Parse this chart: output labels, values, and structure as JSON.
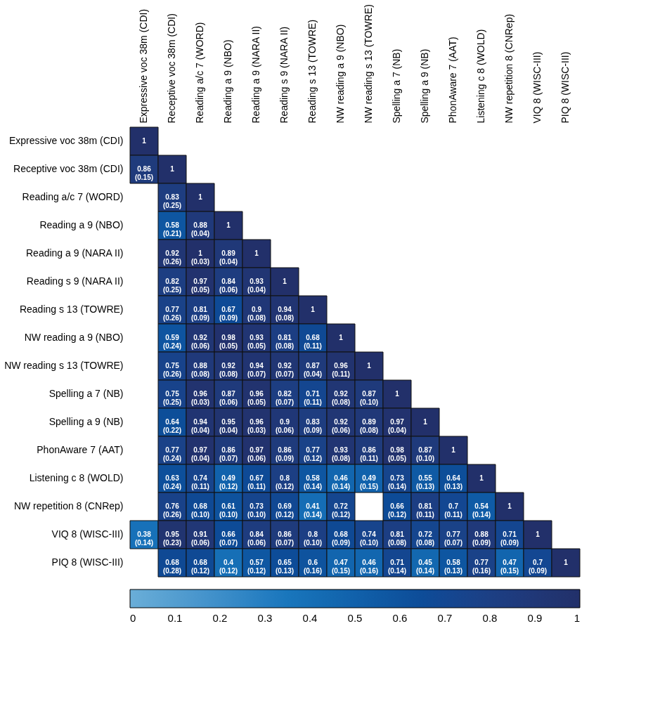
{
  "chart_data": {
    "type": "heatmap",
    "categories": [
      "Expressive voc 38m (CDI)",
      "Receptive voc 38m (CDI)",
      "Reading a/c 7 (WORD)",
      "Reading a 9 (NBO)",
      "Reading a 9 (NARA II)",
      "Reading s 9 (NARA II)",
      "Reading s 13 (TOWRE)",
      "NW reading a 9 (NBO)",
      "NW reading s 13 (TOWRE)",
      "Spelling a 7 (NB)",
      "Spelling a 9 (NB)",
      "PhonAware 7 (AAT)",
      "Listening c 8 (WOLD)",
      "NW repetition 8 (CNRep)",
      "VIQ 8 (WISC-III)",
      "PIQ 8 (WISC-III)"
    ],
    "y_categories": [
      "Expressive voc 38m (CDI)",
      "Receptive voc 38m (CDI)",
      "Reading a/c 7 (WORD)",
      "Reading a 9 (NBO)",
      "Reading a 9 (NARA II)",
      "Reading s 9 (NARA II)",
      "Reading s 13 (TOWRE)",
      "NW reading a 9 (NBO)",
      "NW reading s 13 (TOWRE)",
      "Spelling a 7 (NB)",
      "Spelling a 9 (NB)",
      "PhonAware 7 (AAT)",
      "Listening c 8 (WOLD)",
      "NW repetition 8 (CNRep)",
      "VIQ 8 (WISC-III)",
      "PIQ 8 (WISC-III)"
    ],
    "cells": [
      [
        1,
        null,
        null,
        null,
        null,
        null,
        null,
        null,
        null,
        null,
        null,
        null,
        null,
        null,
        null,
        null
      ],
      [
        0.86,
        1,
        null,
        null,
        null,
        null,
        null,
        null,
        null,
        null,
        null,
        null,
        null,
        null,
        null,
        null
      ],
      [
        null,
        0.83,
        1,
        null,
        null,
        null,
        null,
        null,
        null,
        null,
        null,
        null,
        null,
        null,
        null,
        null
      ],
      [
        null,
        0.58,
        0.88,
        1,
        null,
        null,
        null,
        null,
        null,
        null,
        null,
        null,
        null,
        null,
        null,
        null
      ],
      [
        null,
        0.92,
        1,
        0.89,
        1,
        null,
        null,
        null,
        null,
        null,
        null,
        null,
        null,
        null,
        null,
        null
      ],
      [
        null,
        0.82,
        0.97,
        0.84,
        0.93,
        1,
        null,
        null,
        null,
        null,
        null,
        null,
        null,
        null,
        null,
        null
      ],
      [
        null,
        0.77,
        0.81,
        0.67,
        0.9,
        0.94,
        1,
        null,
        null,
        null,
        null,
        null,
        null,
        null,
        null,
        null
      ],
      [
        null,
        0.59,
        0.92,
        0.98,
        0.93,
        0.81,
        0.68,
        1,
        null,
        null,
        null,
        null,
        null,
        null,
        null,
        null
      ],
      [
        null,
        0.75,
        0.88,
        0.92,
        0.94,
        0.92,
        0.87,
        0.96,
        1,
        null,
        null,
        null,
        null,
        null,
        null,
        null
      ],
      [
        null,
        0.75,
        0.96,
        0.87,
        0.96,
        0.82,
        0.71,
        0.92,
        0.87,
        1,
        null,
        null,
        null,
        null,
        null,
        null
      ],
      [
        null,
        0.64,
        0.94,
        0.95,
        0.96,
        0.9,
        0.83,
        0.92,
        0.89,
        0.97,
        1,
        null,
        null,
        null,
        null,
        null
      ],
      [
        null,
        0.77,
        0.97,
        0.86,
        0.97,
        0.86,
        0.77,
        0.93,
        0.86,
        0.98,
        0.87,
        1,
        null,
        null,
        null,
        null
      ],
      [
        null,
        0.63,
        0.74,
        0.49,
        0.67,
        0.8,
        0.58,
        0.46,
        0.49,
        0.73,
        0.55,
        0.64,
        1,
        null,
        null,
        null
      ],
      [
        null,
        0.76,
        0.68,
        0.61,
        0.73,
        0.69,
        0.41,
        0.72,
        null,
        0.66,
        0.81,
        0.7,
        0.54,
        1,
        null,
        null
      ],
      [
        0.38,
        0.95,
        0.91,
        0.66,
        0.84,
        0.86,
        0.8,
        0.68,
        0.74,
        0.81,
        0.72,
        0.77,
        0.88,
        0.71,
        1,
        null
      ],
      [
        null,
        0.68,
        0.68,
        0.4,
        0.57,
        0.65,
        0.6,
        0.47,
        0.46,
        0.71,
        0.45,
        0.58,
        0.77,
        0.47,
        0.7,
        1
      ]
    ],
    "cell_labels": [
      [
        "1",
        null,
        null,
        null,
        null,
        null,
        null,
        null,
        null,
        null,
        null,
        null,
        null,
        null,
        null,
        null
      ],
      [
        "0.86\n(0.15)",
        "1",
        null,
        null,
        null,
        null,
        null,
        null,
        null,
        null,
        null,
        null,
        null,
        null,
        null,
        null
      ],
      [
        null,
        "0.83\n(0.25)",
        "1",
        null,
        null,
        null,
        null,
        null,
        null,
        null,
        null,
        null,
        null,
        null,
        null,
        null
      ],
      [
        null,
        "0.58\n(0.21)",
        "0.88\n(0.04)",
        "1",
        null,
        null,
        null,
        null,
        null,
        null,
        null,
        null,
        null,
        null,
        null,
        null
      ],
      [
        null,
        "0.92\n(0.26)",
        "1\n(0.03)",
        "0.89\n(0.04)",
        "1",
        null,
        null,
        null,
        null,
        null,
        null,
        null,
        null,
        null,
        null,
        null
      ],
      [
        null,
        "0.82\n(0.25)",
        "0.97\n(0.05)",
        "0.84\n(0.06)",
        "0.93\n(0.04)",
        "1",
        null,
        null,
        null,
        null,
        null,
        null,
        null,
        null,
        null,
        null
      ],
      [
        null,
        "0.77\n(0.26)",
        "0.81\n(0.09)",
        "0.67\n(0.09)",
        "0.9\n(0.08)",
        "0.94\n(0.08)",
        "1",
        null,
        null,
        null,
        null,
        null,
        null,
        null,
        null,
        null
      ],
      [
        null,
        "0.59\n(0.24)",
        "0.92\n(0.06)",
        "0.98\n(0.05)",
        "0.93\n(0.05)",
        "0.81\n(0.08)",
        "0.68\n(0.11)",
        "1",
        null,
        null,
        null,
        null,
        null,
        null,
        null,
        null
      ],
      [
        null,
        "0.75\n(0.26)",
        "0.88\n(0.08)",
        "0.92\n(0.08)",
        "0.94\n(0.07)",
        "0.92\n(0.07)",
        "0.87\n(0.04)",
        "0.96\n(0.11)",
        "1",
        null,
        null,
        null,
        null,
        null,
        null,
        null
      ],
      [
        null,
        "0.75\n(0.25)",
        "0.96\n(0.03)",
        "0.87\n(0.06)",
        "0.96\n(0.05)",
        "0.82\n(0.07)",
        "0.71\n(0.11)",
        "0.92\n(0.08)",
        "0.87\n(0.10)",
        "1",
        null,
        null,
        null,
        null,
        null,
        null
      ],
      [
        null,
        "0.64\n(0.22)",
        "0.94\n(0.04)",
        "0.95\n(0.04)",
        "0.96\n(0.03)",
        "0.9\n(0.06)",
        "0.83\n(0.09)",
        "0.92\n(0.06)",
        "0.89\n(0.08)",
        "0.97\n(0.04)",
        "1",
        null,
        null,
        null,
        null,
        null
      ],
      [
        null,
        "0.77\n(0.24)",
        "0.97\n(0.04)",
        "0.86\n(0.07)",
        "0.97\n(0.06)",
        "0.86\n(0.09)",
        "0.77\n(0.12)",
        "0.93\n(0.08)",
        "0.86\n(0.11)",
        "0.98\n(0.05)",
        "0.87\n(0.10)",
        "1",
        null,
        null,
        null,
        null
      ],
      [
        null,
        "0.63\n(0.24)",
        "0.74\n(0.11)",
        "0.49\n(0.12)",
        "0.67\n(0.11)",
        "0.8\n(0.12)",
        "0.58\n(0.14)",
        "0.46\n(0.14)",
        "0.49\n(0.15)",
        "0.73\n(0.14)",
        "0.55\n(0.13)",
        "0.64\n(0.13)",
        "1",
        null,
        null,
        null
      ],
      [
        null,
        "0.76\n(0.26)",
        "0.68\n(0.10)",
        "0.61\n(0.10)",
        "0.73\n(0.10)",
        "0.69\n(0.12)",
        "0.41\n(0.14)",
        "0.72\n(0.12)",
        null,
        "0.66\n(0.12)",
        "0.81\n(0.11)",
        "0.7\n(0.11)",
        "0.54\n(0.14)",
        "1",
        null,
        null
      ],
      [
        "0.38\n(0.14)",
        "0.95\n(0.23)",
        "0.91\n(0.06)",
        "0.66\n(0.07)",
        "0.84\n(0.06)",
        "0.86\n(0.07)",
        "0.8\n(0.10)",
        "0.68\n(0.09)",
        "0.74\n(0.10)",
        "0.81\n(0.08)",
        "0.72\n(0.08)",
        "0.77\n(0.07)",
        "0.88\n(0.09)",
        "0.71\n(0.09)",
        "1",
        null
      ],
      [
        null,
        "0.68\n(0.28)",
        "0.68\n(0.12)",
        "0.4\n(0.12)",
        "0.57\n(0.12)",
        "0.65\n(0.13)",
        "0.6\n(0.16)",
        "0.47\n(0.15)",
        "0.46\n(0.16)",
        "0.71\n(0.14)",
        "0.45\n(0.14)",
        "0.58\n(0.13)",
        "0.77\n(0.16)",
        "0.47\n(0.15)",
        "0.7\n(0.09)",
        "1"
      ]
    ],
    "clim": [
      0,
      1
    ],
    "cticks": [
      0,
      0.1,
      0.2,
      0.3,
      0.4,
      0.5,
      0.6,
      0.7,
      0.8,
      0.9,
      1
    ]
  }
}
